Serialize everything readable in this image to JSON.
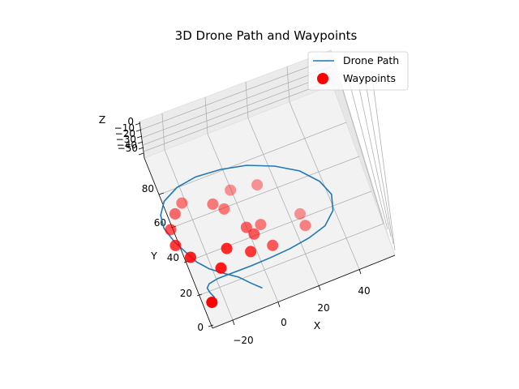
{
  "chart_data": {
    "type": "scatter",
    "projection": "3d",
    "title": "3D Drone Path and Waypoints",
    "xlabel": "X",
    "ylabel": "Y",
    "zlabel": "Z",
    "x_ticks": [
      "−20",
      "0",
      "20",
      "40"
    ],
    "y_ticks": [
      "0",
      "20",
      "40",
      "60",
      "80"
    ],
    "z_ticks": [
      "0",
      "−10",
      "−20",
      "−30",
      "−40",
      "−50"
    ],
    "grid": true,
    "legend": {
      "location": "top-right",
      "entries": [
        "Drone Path",
        "Waypoints"
      ]
    },
    "series": [
      {
        "name": "Drone Path",
        "kind": "line",
        "color": "#1f77b4",
        "points": [
          {
            "x": -2,
            "y": 12,
            "z": -2
          },
          {
            "x": -6,
            "y": 18,
            "z": -4
          },
          {
            "x": -10,
            "y": 24,
            "z": -5
          },
          {
            "x": -15,
            "y": 29,
            "z": -6
          },
          {
            "x": -21,
            "y": 36,
            "z": -8
          },
          {
            "x": -25,
            "y": 43,
            "z": -10
          },
          {
            "x": -28,
            "y": 51,
            "z": -11
          },
          {
            "x": -31,
            "y": 60,
            "z": -13
          },
          {
            "x": -33,
            "y": 70,
            "z": -15
          },
          {
            "x": -32,
            "y": 79,
            "z": -18
          },
          {
            "x": -28,
            "y": 87,
            "z": -21
          },
          {
            "x": -20,
            "y": 93,
            "z": -24
          },
          {
            "x": -10,
            "y": 96,
            "z": -27
          },
          {
            "x": 2,
            "y": 96,
            "z": -30
          },
          {
            "x": 14,
            "y": 94,
            "z": -33
          },
          {
            "x": 26,
            "y": 89,
            "z": -36
          },
          {
            "x": 36,
            "y": 82,
            "z": -38
          },
          {
            "x": 43,
            "y": 73,
            "z": -40
          },
          {
            "x": 46,
            "y": 64,
            "z": -41
          },
          {
            "x": 44,
            "y": 55,
            "z": -41
          },
          {
            "x": 38,
            "y": 48,
            "z": -40
          },
          {
            "x": 29,
            "y": 44,
            "z": -38
          },
          {
            "x": 19,
            "y": 41,
            "z": -35
          },
          {
            "x": 9,
            "y": 39,
            "z": -32
          },
          {
            "x": -1,
            "y": 37,
            "z": -28
          },
          {
            "x": -10,
            "y": 35,
            "z": -23
          },
          {
            "x": -18,
            "y": 33,
            "z": -18
          },
          {
            "x": -23,
            "y": 30,
            "z": -13
          },
          {
            "x": -25,
            "y": 26,
            "z": -8
          },
          {
            "x": -25,
            "y": 21,
            "z": -3
          },
          {
            "x": -24,
            "y": 16,
            "z": 0
          }
        ]
      },
      {
        "name": "Waypoints",
        "kind": "scatter",
        "color": "#ff0000",
        "points": [
          {
            "x": -26,
            "y": 14,
            "z": 0
          },
          {
            "x": -16,
            "y": 33,
            "z": -6
          },
          {
            "x": 0,
            "y": 39,
            "z": -14
          },
          {
            "x": 11,
            "y": 41,
            "z": -22
          },
          {
            "x": 29,
            "y": 49,
            "z": -32
          },
          {
            "x": 29,
            "y": 58,
            "z": -36
          },
          {
            "x": 16,
            "y": 85,
            "z": -42
          },
          {
            "x": 4,
            "y": 89,
            "z": -45
          },
          {
            "x": -3,
            "y": 74,
            "z": -30
          },
          {
            "x": 3,
            "y": 57,
            "z": -24
          },
          {
            "x": 10,
            "y": 58,
            "z": -30
          },
          {
            "x": 5,
            "y": 51,
            "z": -22
          },
          {
            "x": -10,
            "y": 44,
            "z": -10
          },
          {
            "x": -27,
            "y": 46,
            "z": -8
          },
          {
            "x": -31,
            "y": 58,
            "z": -14
          },
          {
            "x": -30,
            "y": 70,
            "z": -20
          },
          {
            "x": -25,
            "y": 80,
            "z": -26
          },
          {
            "x": -20,
            "y": 86,
            "z": -30
          },
          {
            "x": -7,
            "y": 79,
            "z": -30
          }
        ]
      }
    ]
  }
}
